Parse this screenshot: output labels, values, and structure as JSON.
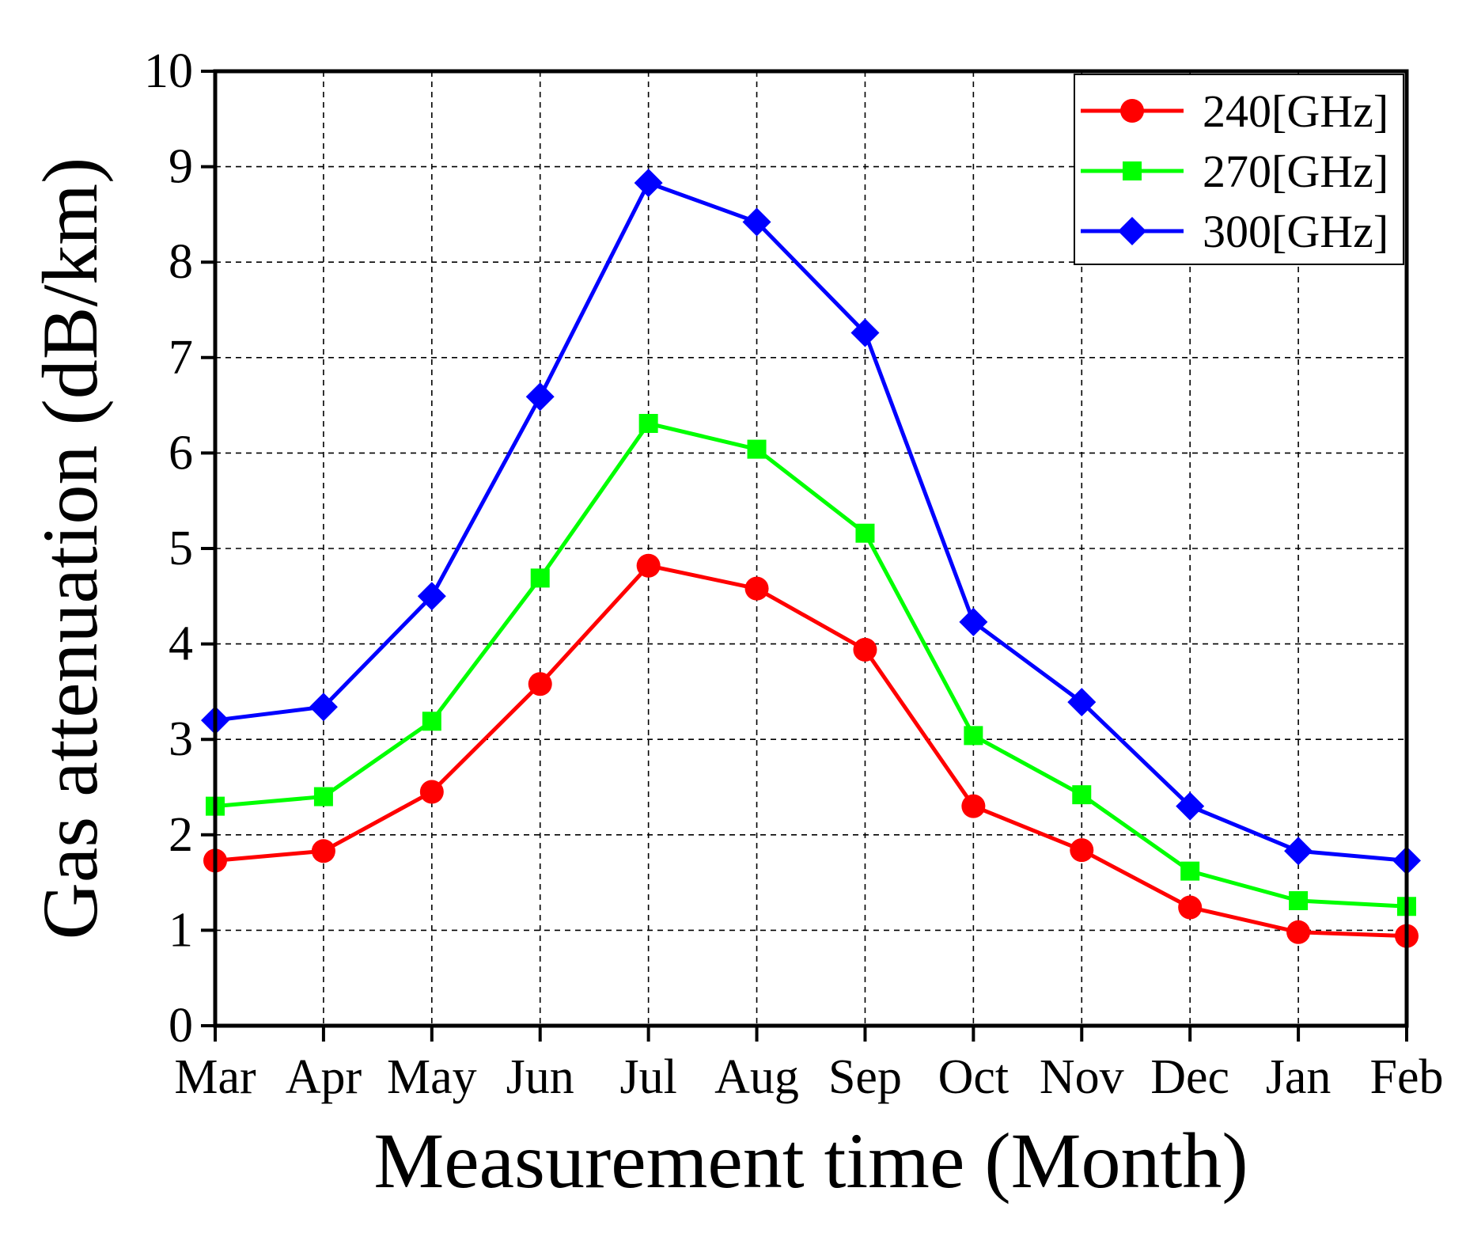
{
  "chart_data": {
    "type": "line",
    "title": "",
    "xlabel": "Measurement time (Month)",
    "ylabel": "Gas attenuation (dB/km)",
    "categories": [
      "Mar",
      "Apr",
      "May",
      "Jun",
      "Jul",
      "Aug",
      "Sep",
      "Oct",
      "Nov",
      "Dec",
      "Jan",
      "Feb"
    ],
    "ylim": [
      0,
      10
    ],
    "yticks": [
      0,
      1,
      2,
      3,
      4,
      5,
      6,
      7,
      8,
      9,
      10
    ],
    "grid": true,
    "legend_position": "top-right",
    "series": [
      {
        "name": "240[GHz]",
        "color": "#ff0000",
        "marker": "circle",
        "values": [
          1.73,
          1.83,
          2.45,
          3.58,
          4.82,
          4.58,
          3.94,
          2.3,
          1.84,
          1.24,
          0.98,
          0.94
        ]
      },
      {
        "name": "270[GHz]",
        "color": "#00ff00",
        "marker": "square",
        "values": [
          2.3,
          2.4,
          3.19,
          4.69,
          6.31,
          6.04,
          5.16,
          3.04,
          2.42,
          1.62,
          1.31,
          1.25
        ]
      },
      {
        "name": "300[GHz]",
        "color": "#0000ff",
        "marker": "diamond",
        "values": [
          3.2,
          3.34,
          4.5,
          6.59,
          8.83,
          8.42,
          7.26,
          4.23,
          3.39,
          2.3,
          1.83,
          1.73
        ]
      }
    ]
  }
}
